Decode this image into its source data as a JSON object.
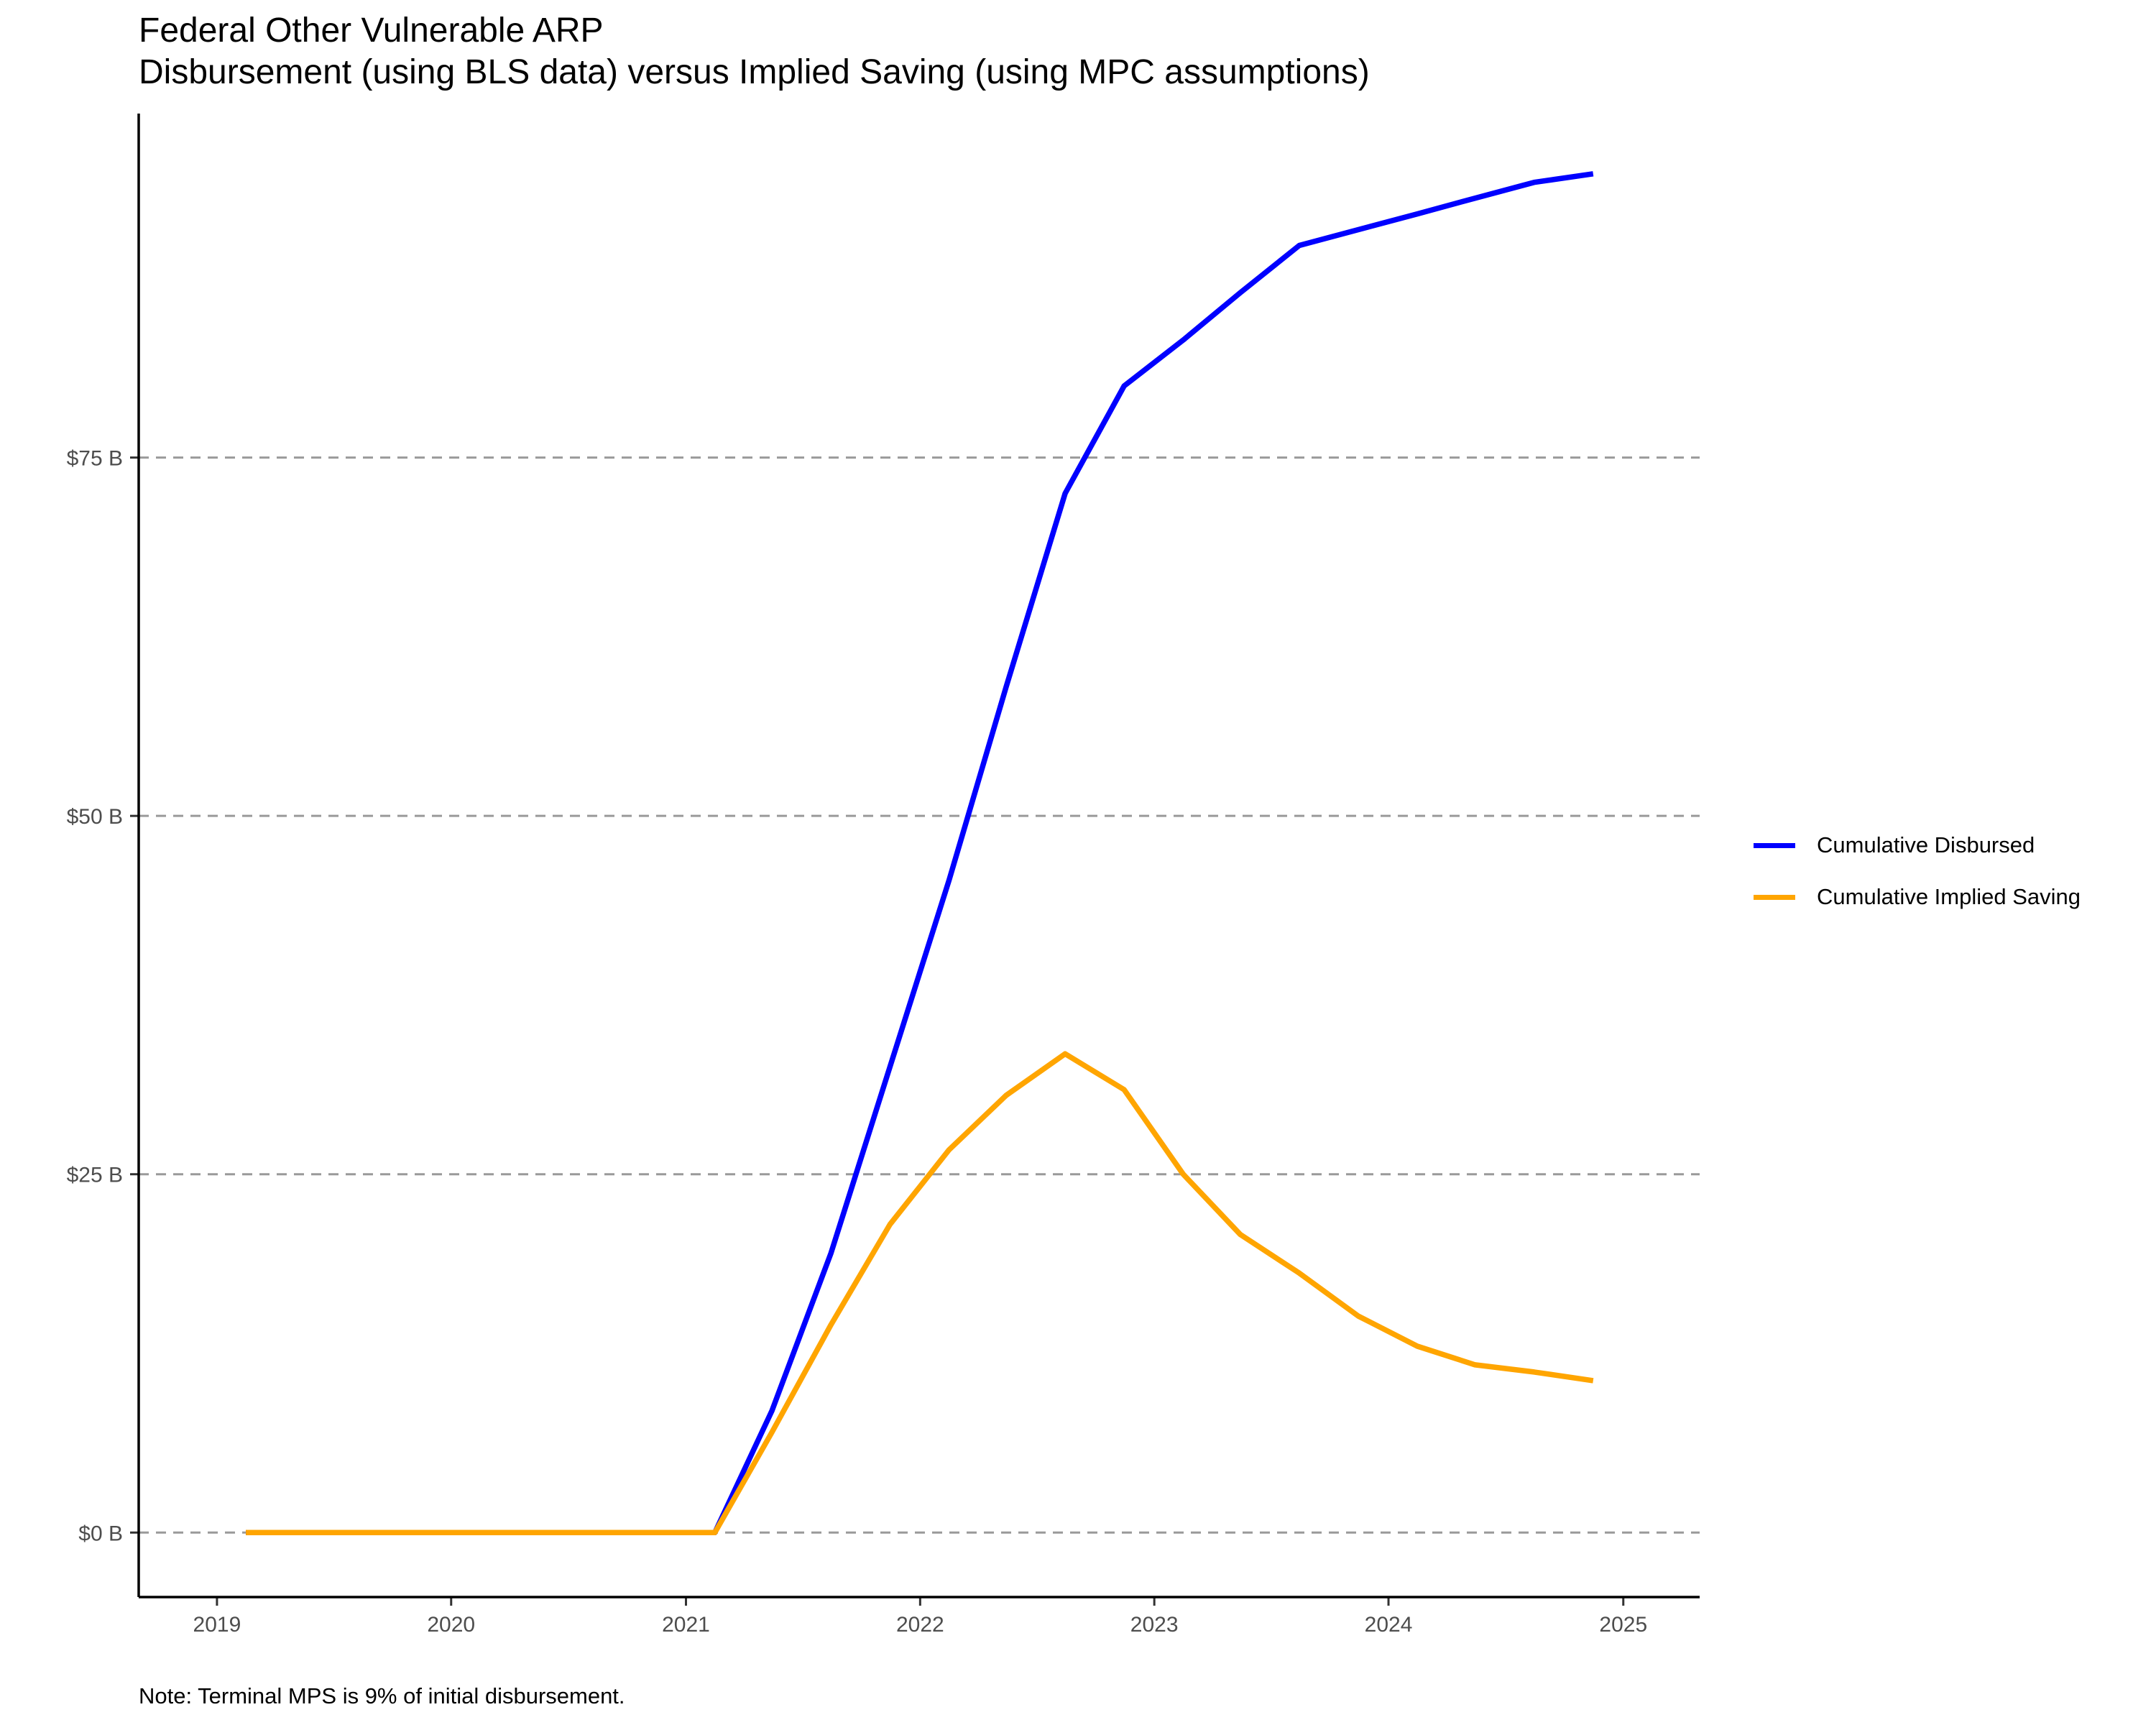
{
  "chart_data": {
    "type": "line",
    "title": "Federal Other Vulnerable ARP",
    "subtitle": "Disbursement (using BLS data) versus Implied Saving (using MPC assumptions)",
    "xlabel": "",
    "ylabel": "",
    "x_ticks": [
      "2019",
      "2020",
      "2021",
      "2022",
      "2023",
      "2024",
      "2025"
    ],
    "y_ticks": [
      "$0 B",
      "$25 B",
      "$50 B",
      "$75 B"
    ],
    "xlim": [
      "2018-09-01",
      "2025-04-30"
    ],
    "ylim": [
      -4.5,
      99
    ],
    "grid": "horizontal dashed",
    "legend_position": "right",
    "x": [
      "2019-02-15",
      "2019-05-15",
      "2019-08-15",
      "2019-11-15",
      "2020-02-15",
      "2020-05-15",
      "2020-08-15",
      "2020-11-15",
      "2021-02-15",
      "2021-05-15",
      "2021-08-15",
      "2021-11-15",
      "2022-02-15",
      "2022-05-15",
      "2022-08-15",
      "2022-11-15",
      "2023-02-15",
      "2023-05-15",
      "2023-08-15",
      "2023-11-15",
      "2024-02-15",
      "2024-05-15",
      "2024-08-15",
      "2024-11-15"
    ],
    "series": [
      {
        "name": "Cumulative Disbursed",
        "color": "#0000FF",
        "values": [
          0,
          0,
          0,
          0,
          0,
          0,
          0,
          0,
          0,
          8.5,
          19.5,
          32.5,
          45.5,
          59,
          72.5,
          80,
          83.2,
          86.5,
          89.8,
          90.9,
          92,
          93.1,
          94.2,
          94.8
        ]
      },
      {
        "name": "Cumulative Implied Saving",
        "color": "#FFA500",
        "values": [
          0,
          0,
          0,
          0,
          0,
          0,
          0,
          0,
          0,
          7,
          14.5,
          21.5,
          26.7,
          30.5,
          33.4,
          30.9,
          25,
          20.8,
          18.1,
          15.1,
          13,
          11.7,
          11.2,
          10.6
        ]
      }
    ],
    "note": "Note: Terminal MPS is 9% of initial disbursement."
  }
}
